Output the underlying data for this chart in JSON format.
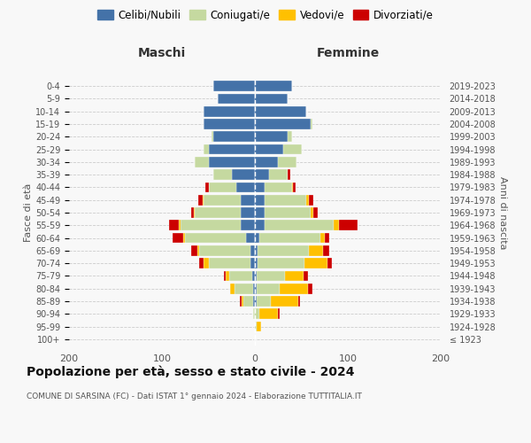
{
  "age_groups": [
    "100+",
    "95-99",
    "90-94",
    "85-89",
    "80-84",
    "75-79",
    "70-74",
    "65-69",
    "60-64",
    "55-59",
    "50-54",
    "45-49",
    "40-44",
    "35-39",
    "30-34",
    "25-29",
    "20-24",
    "15-19",
    "10-14",
    "5-9",
    "0-4"
  ],
  "birth_years": [
    "≤ 1923",
    "1924-1928",
    "1929-1933",
    "1934-1938",
    "1939-1943",
    "1944-1948",
    "1949-1953",
    "1954-1958",
    "1959-1963",
    "1964-1968",
    "1969-1973",
    "1974-1978",
    "1979-1983",
    "1984-1988",
    "1989-1993",
    "1994-1998",
    "1999-2003",
    "2004-2008",
    "2009-2013",
    "2014-2018",
    "2019-2023"
  ],
  "maschi_celibi": [
    0,
    0,
    0,
    2,
    2,
    3,
    5,
    5,
    10,
    15,
    15,
    15,
    20,
    25,
    50,
    50,
    45,
    55,
    55,
    40,
    45
  ],
  "maschi_coniugati": [
    0,
    0,
    2,
    10,
    20,
    25,
    45,
    55,
    65,
    65,
    50,
    40,
    30,
    20,
    15,
    5,
    2,
    0,
    0,
    0,
    0
  ],
  "maschi_vedovi": [
    0,
    0,
    0,
    2,
    5,
    3,
    5,
    2,
    2,
    2,
    1,
    1,
    0,
    0,
    0,
    0,
    0,
    0,
    0,
    0,
    0
  ],
  "maschi_divorziati": [
    0,
    0,
    0,
    2,
    0,
    2,
    5,
    7,
    12,
    10,
    3,
    5,
    3,
    0,
    0,
    0,
    0,
    0,
    0,
    0,
    0
  ],
  "femmine_nubili": [
    0,
    0,
    0,
    2,
    2,
    2,
    3,
    3,
    5,
    10,
    10,
    10,
    10,
    15,
    25,
    30,
    35,
    60,
    55,
    35,
    40
  ],
  "femmine_coniugate": [
    0,
    2,
    5,
    15,
    25,
    30,
    50,
    55,
    65,
    75,
    50,
    45,
    30,
    20,
    20,
    20,
    5,
    2,
    0,
    0,
    0
  ],
  "femmine_vedove": [
    0,
    5,
    20,
    30,
    30,
    20,
    25,
    15,
    5,
    5,
    3,
    3,
    1,
    0,
    0,
    0,
    0,
    0,
    0,
    0,
    0
  ],
  "femmine_divorziate": [
    0,
    0,
    2,
    2,
    5,
    5,
    5,
    7,
    5,
    20,
    5,
    5,
    3,
    3,
    0,
    0,
    0,
    0,
    0,
    0,
    0
  ],
  "col_cel": "#4472a8",
  "col_con": "#c5d9a0",
  "col_ved": "#ffc000",
  "col_div": "#cc0000",
  "xlim": 200,
  "title": "Popolazione per età, sesso e stato civile - 2024",
  "subtitle": "COMUNE DI SARSINA (FC) - Dati ISTAT 1° gennaio 2024 - Elaborazione TUTTITALIA.IT",
  "lbl_maschi": "Maschi",
  "lbl_femmine": "Femmine",
  "ylabel_left": "Fasce di età",
  "ylabel_right": "Anni di nascita",
  "legend_labels": [
    "Celibi/Nubili",
    "Coniugati/e",
    "Vedovi/e",
    "Divorziati/e"
  ],
  "bg_color": "#f8f8f8",
  "grid_color": "#cccccc"
}
